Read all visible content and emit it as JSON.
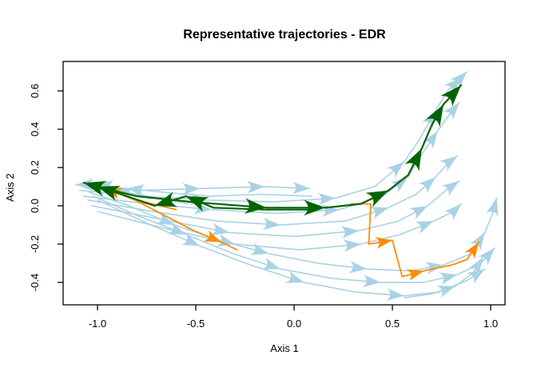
{
  "chart_data": {
    "type": "line",
    "title": "Representative trajectories - EDR",
    "xlabel": "Axis 1",
    "ylabel": "Axis 2",
    "x_ticks": [
      "-1.0",
      "-0.5",
      "0.0",
      "0.5",
      "1.0"
    ],
    "y_ticks": [
      "0.6",
      "0.4",
      "0.2",
      "0.0",
      "-0.2",
      "-0.4"
    ],
    "xlim": [
      -1.175,
      1.073
    ],
    "ylim": [
      -0.517,
      0.754
    ],
    "grid": false,
    "legend": "none",
    "palette": {
      "field": "#A9D2E4",
      "representative_green": "#006400",
      "representative_orange": "#FF8C00",
      "axis": "#000000"
    },
    "trajectories": [
      {
        "name": "field-1",
        "color": "field",
        "width": 1.6,
        "arrow_scale": 1,
        "points": [
          [
            -1.11,
            0.11
          ],
          [
            -0.8,
            0.08
          ],
          [
            -0.48,
            0.09
          ],
          [
            -0.15,
            0.1
          ],
          [
            0.08,
            0.09
          ]
        ],
        "arrows": [
          2,
          3,
          4
        ]
      },
      {
        "name": "field-2",
        "color": "field",
        "width": 1.6,
        "arrow_scale": 1,
        "points": [
          [
            -1.09,
            0.08
          ],
          [
            -0.76,
            0.05
          ],
          [
            -0.44,
            0.03
          ],
          [
            -0.11,
            0.02
          ],
          [
            0.21,
            0.04
          ],
          [
            0.41,
            0.1
          ],
          [
            0.56,
            0.23
          ],
          [
            0.64,
            0.35
          ],
          [
            0.72,
            0.5
          ],
          [
            0.78,
            0.6
          ],
          [
            0.85,
            0.67
          ],
          [
            0.88,
            0.7
          ]
        ],
        "arrows": [
          2,
          4,
          6,
          8,
          10,
          11
        ]
      },
      {
        "name": "field-3",
        "color": "field",
        "width": 1.6,
        "arrow_scale": 1,
        "points": [
          [
            -1.07,
            0.05
          ],
          [
            -0.74,
            0.01
          ],
          [
            -0.42,
            -0.02
          ],
          [
            -0.09,
            -0.04
          ],
          [
            0.23,
            -0.02
          ],
          [
            0.45,
            0.05
          ],
          [
            0.58,
            0.15
          ],
          [
            0.65,
            0.27
          ],
          [
            0.73,
            0.39
          ],
          [
            0.8,
            0.49
          ],
          [
            0.84,
            0.54
          ]
        ],
        "arrows": [
          2,
          4,
          6,
          8,
          10
        ]
      },
      {
        "name": "field-4",
        "color": "field",
        "width": 1.6,
        "arrow_scale": 1,
        "points": [
          [
            -1.05,
            0.03
          ],
          [
            -0.72,
            -0.03
          ],
          [
            -0.39,
            -0.08
          ],
          [
            -0.07,
            -0.1
          ],
          [
            0.26,
            -0.08
          ],
          [
            0.48,
            -0.01
          ],
          [
            0.62,
            0.06
          ],
          [
            0.72,
            0.15
          ],
          [
            0.79,
            0.23
          ],
          [
            0.83,
            0.26
          ]
        ],
        "arrows": [
          3,
          5,
          7,
          9
        ]
      },
      {
        "name": "field-5",
        "color": "field",
        "width": 1.6,
        "arrow_scale": 1,
        "points": [
          [
            -1.03,
            0.0
          ],
          [
            -0.68,
            -0.07
          ],
          [
            -0.33,
            -0.14
          ],
          [
            0.0,
            -0.16
          ],
          [
            0.33,
            -0.13
          ],
          [
            0.53,
            -0.08
          ],
          [
            0.68,
            0.0
          ],
          [
            0.77,
            0.08
          ],
          [
            0.84,
            0.13
          ]
        ],
        "arrows": [
          2,
          4,
          6,
          8
        ]
      },
      {
        "name": "field-6",
        "color": "field",
        "width": 1.6,
        "arrow_scale": 1,
        "points": [
          [
            -1.0,
            -0.03
          ],
          [
            -0.65,
            -0.12
          ],
          [
            -0.3,
            -0.2
          ],
          [
            0.03,
            -0.23
          ],
          [
            0.34,
            -0.2
          ],
          [
            0.54,
            -0.15
          ],
          [
            0.71,
            -0.08
          ],
          [
            0.81,
            -0.03
          ],
          [
            0.85,
            0.01
          ]
        ],
        "arrows": [
          2,
          4,
          6,
          8
        ]
      },
      {
        "name": "field-7",
        "color": "field",
        "width": 1.6,
        "arrow_scale": 1,
        "points": [
          [
            -1.04,
            0.07
          ],
          [
            -0.84,
            0.0
          ],
          [
            -0.61,
            -0.1
          ],
          [
            -0.38,
            -0.18
          ],
          [
            -0.13,
            -0.25
          ],
          [
            0.12,
            -0.3
          ],
          [
            0.37,
            -0.33
          ],
          [
            0.59,
            -0.34
          ],
          [
            0.76,
            -0.31
          ],
          [
            0.9,
            -0.25
          ],
          [
            0.97,
            -0.14
          ],
          [
            1.01,
            -0.04
          ],
          [
            1.03,
            0.04
          ]
        ],
        "arrows": [
          2,
          4,
          6,
          8,
          10,
          12
        ]
      },
      {
        "name": "field-8",
        "color": "field",
        "width": 1.6,
        "arrow_scale": 1,
        "points": [
          [
            -1.02,
            0.05
          ],
          [
            -0.8,
            -0.05
          ],
          [
            -0.55,
            -0.15
          ],
          [
            -0.31,
            -0.25
          ],
          [
            -0.07,
            -0.33
          ],
          [
            0.2,
            -0.38
          ],
          [
            0.44,
            -0.4
          ],
          [
            0.66,
            -0.4
          ],
          [
            0.83,
            -0.36
          ],
          [
            0.95,
            -0.3
          ],
          [
            1.02,
            -0.22
          ]
        ],
        "arrows": [
          2,
          4,
          6,
          8,
          10
        ]
      },
      {
        "name": "field-9",
        "color": "field",
        "width": 1.6,
        "arrow_scale": 1,
        "points": [
          [
            -1.0,
            0.03
          ],
          [
            -0.75,
            -0.09
          ],
          [
            -0.48,
            -0.21
          ],
          [
            -0.22,
            -0.31
          ],
          [
            0.05,
            -0.4
          ],
          [
            0.31,
            -0.45
          ],
          [
            0.56,
            -0.47
          ],
          [
            0.74,
            -0.45
          ],
          [
            0.88,
            -0.39
          ],
          [
            0.97,
            -0.33
          ]
        ],
        "arrows": [
          2,
          4,
          6,
          9
        ]
      },
      {
        "name": "field-10",
        "color": "field",
        "width": 1.6,
        "arrow_scale": 1,
        "points": [
          [
            0.56,
            -0.48
          ],
          [
            0.7,
            -0.46
          ],
          [
            0.82,
            -0.42
          ],
          [
            0.91,
            -0.35
          ],
          [
            0.96,
            -0.27
          ]
        ],
        "arrows": [
          2,
          4
        ]
      },
      {
        "name": "field-11",
        "color": "field",
        "width": 1.6,
        "arrow_scale": 1,
        "points": [
          [
            0.09,
            0.05
          ],
          [
            -0.17,
            0.06
          ],
          [
            -0.43,
            0.05
          ],
          [
            -0.66,
            0.07
          ],
          [
            -0.85,
            0.09
          ],
          [
            -1.01,
            0.11
          ],
          [
            -1.11,
            0.11
          ]
        ],
        "arrows": [
          4,
          5,
          6
        ]
      },
      {
        "name": "field-12",
        "color": "field",
        "width": 1.6,
        "arrow_scale": 1,
        "points": [
          [
            -0.54,
            0.01
          ],
          [
            -0.74,
            0.05
          ],
          [
            -0.91,
            0.08
          ],
          [
            -1.05,
            0.1
          ]
        ],
        "arrows": [
          2,
          3
        ]
      },
      {
        "name": "representative-orange-inbound",
        "color": "representative_orange",
        "width": 1.8,
        "arrow_scale": 0.95,
        "points": [
          [
            -0.6,
            -0.02
          ],
          [
            -0.76,
            0.02
          ],
          [
            -0.88,
            0.06
          ],
          [
            -0.96,
            0.1
          ]
        ],
        "arrows": [
          3
        ]
      },
      {
        "name": "representative-orange-outbound",
        "color": "representative_orange",
        "width": 1.8,
        "arrow_scale": 0.95,
        "points": [
          [
            -0.96,
            0.09
          ],
          [
            -0.81,
            0.03
          ],
          [
            -0.66,
            -0.05
          ],
          [
            -0.51,
            -0.13
          ],
          [
            -0.37,
            -0.19
          ],
          [
            -0.29,
            -0.23
          ]
        ],
        "arrows": [
          4
        ]
      },
      {
        "name": "representative-orange-right",
        "color": "representative_orange",
        "width": 1.8,
        "arrow_scale": 0.95,
        "points": [
          [
            0.29,
            0.01
          ],
          [
            0.39,
            0.01
          ],
          [
            0.38,
            -0.2
          ],
          [
            0.5,
            -0.18
          ],
          [
            0.55,
            -0.37
          ],
          [
            0.66,
            -0.34
          ],
          [
            0.8,
            -0.31
          ],
          [
            0.88,
            -0.28
          ],
          [
            0.94,
            -0.19
          ]
        ],
        "arrows": [
          3,
          5,
          8
        ]
      },
      {
        "name": "representative-green-outbound",
        "color": "representative_green",
        "width": 2.2,
        "arrow_scale": 1.25,
        "points": [
          [
            -1.04,
            0.11
          ],
          [
            -0.8,
            0.05
          ],
          [
            -0.52,
            0.02
          ],
          [
            -0.14,
            -0.01
          ],
          [
            0.16,
            -0.01
          ],
          [
            0.34,
            0.01
          ],
          [
            0.48,
            0.08
          ],
          [
            0.58,
            0.16
          ],
          [
            0.65,
            0.3
          ],
          [
            0.7,
            0.42
          ],
          [
            0.76,
            0.53
          ],
          [
            0.85,
            0.63
          ]
        ],
        "arrows": [
          3,
          4,
          6,
          8,
          10,
          11
        ]
      },
      {
        "name": "representative-green-inbound",
        "color": "representative_green",
        "width": 2.2,
        "arrow_scale": 1.25,
        "points": [
          [
            0.11,
            -0.02
          ],
          [
            -0.15,
            -0.02
          ],
          [
            -0.41,
            -0.01
          ],
          [
            -0.55,
            0.05
          ],
          [
            -0.71,
            0.0
          ],
          [
            -0.88,
            0.06
          ],
          [
            -1.0,
            0.1
          ],
          [
            -1.07,
            0.12
          ]
        ],
        "arrows": [
          3,
          4,
          6,
          7
        ]
      }
    ]
  }
}
